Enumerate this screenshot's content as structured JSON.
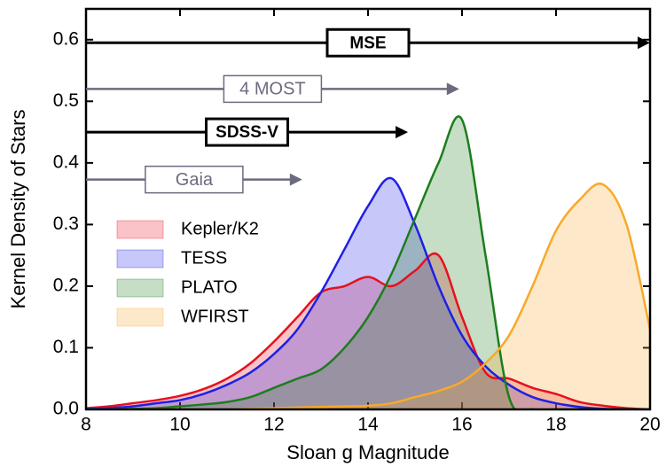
{
  "chart_data": {
    "type": "area",
    "xlabel": "Sloan g Magnitude",
    "ylabel": "Kernel Density of Stars",
    "x": [
      8,
      8.5,
      9,
      9.5,
      10,
      10.5,
      11,
      11.5,
      12,
      12.5,
      13,
      13.5,
      14,
      14.5,
      15,
      15.5,
      16,
      16.5,
      17,
      17.5,
      18,
      18.5,
      19,
      19.5,
      20
    ],
    "series": [
      {
        "name": "Kepler/K2",
        "color": "#e8101f",
        "values": [
          0.002,
          0.005,
          0.01,
          0.015,
          0.022,
          0.033,
          0.05,
          0.075,
          0.11,
          0.15,
          0.19,
          0.2,
          0.215,
          0.2,
          0.225,
          0.25,
          0.15,
          0.06,
          0.05,
          0.035,
          0.025,
          0.012,
          0.006,
          0.002,
          0
        ]
      },
      {
        "name": "TESS",
        "color": "#1f1fe6",
        "values": [
          0.001,
          0.002,
          0.005,
          0.01,
          0.015,
          0.025,
          0.04,
          0.06,
          0.09,
          0.13,
          0.19,
          0.26,
          0.33,
          0.375,
          0.3,
          0.2,
          0.12,
          0.07,
          0.04,
          0.02,
          0.01,
          0.004,
          0.001,
          0,
          0
        ]
      },
      {
        "name": "PLATO",
        "color": "#1d7d1d",
        "values": [
          0,
          0,
          0.001,
          0.002,
          0.005,
          0.008,
          0.012,
          0.02,
          0.035,
          0.05,
          0.065,
          0.1,
          0.15,
          0.22,
          0.31,
          0.4,
          0.47,
          0.25,
          0.02,
          0,
          0,
          0,
          0,
          0,
          0
        ]
      },
      {
        "name": "WFIRST",
        "color": "#f8a928",
        "values": [
          0,
          0,
          0,
          0,
          0,
          0,
          0,
          0.001,
          0.002,
          0.003,
          0.004,
          0.005,
          0.006,
          0.01,
          0.02,
          0.03,
          0.045,
          0.075,
          0.12,
          0.2,
          0.29,
          0.34,
          0.365,
          0.3,
          0.13
        ]
      }
    ],
    "ranges": [
      {
        "label": "MSE",
        "start": 8,
        "end": 20,
        "y": 0.595,
        "color": "#000000",
        "bold": true
      },
      {
        "label": "4 MOST",
        "start": 8,
        "end": 15.94,
        "y": 0.52,
        "color": "#6b6b80",
        "bold": false
      },
      {
        "label": "SDSS-V",
        "start": 8,
        "end": 14.85,
        "y": 0.45,
        "color": "#000000",
        "bold": true
      },
      {
        "label": "Gaia",
        "start": 8,
        "end": 12.6,
        "y": 0.373,
        "color": "#6b6b80",
        "bold": false
      }
    ],
    "xlim": [
      8,
      20
    ],
    "ylim": [
      0,
      0.65
    ],
    "xticks": [
      8,
      10,
      12,
      14,
      16,
      18,
      20
    ],
    "yticks": [
      {
        "value": 0,
        "label": "0.0"
      },
      0.1,
      0.2,
      0.3,
      0.4,
      0.5,
      0.6
    ],
    "legend": "upper left"
  }
}
